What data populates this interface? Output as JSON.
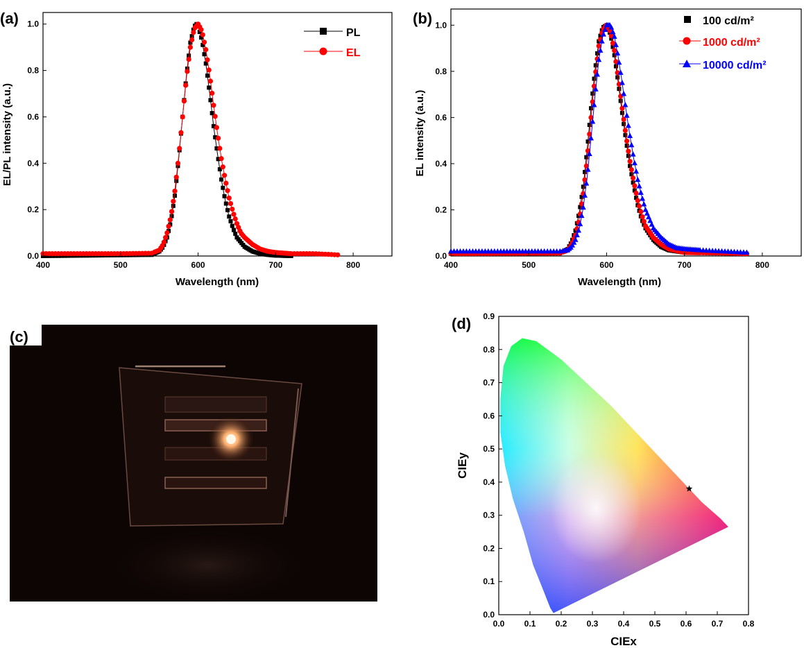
{
  "chart_data": [
    {
      "panel": "(a)",
      "type": "scatter",
      "xlabel": "Wavelength (nm)",
      "ylabel": "EL/PL intensity (a.u.)",
      "xlim": [
        400,
        850
      ],
      "ylim": [
        0,
        1.05
      ],
      "xticks": [
        "400",
        "500",
        "600",
        "700",
        "800"
      ],
      "yticks": [
        "0.0",
        "0.2",
        "0.4",
        "0.6",
        "0.8",
        "1.0"
      ],
      "legend_position": "top-right",
      "series": [
        {
          "name": "PL",
          "color": "#000000",
          "marker": "square",
          "x": [
            400,
            540,
            550,
            555,
            560,
            565,
            570,
            575,
            580,
            585,
            590,
            595,
            598,
            600,
            605,
            610,
            615,
            620,
            625,
            630,
            635,
            640,
            645,
            650,
            660,
            670,
            680,
            690,
            700,
            720
          ],
          "y": [
            0.0,
            0.005,
            0.02,
            0.04,
            0.08,
            0.15,
            0.26,
            0.42,
            0.6,
            0.78,
            0.92,
            0.99,
            1.0,
            0.99,
            0.93,
            0.83,
            0.7,
            0.56,
            0.44,
            0.33,
            0.24,
            0.17,
            0.12,
            0.08,
            0.04,
            0.02,
            0.01,
            0.005,
            0.002,
            0.0
          ]
        },
        {
          "name": "EL",
          "color": "#ff0000",
          "marker": "circle",
          "x": [
            400,
            500,
            540,
            550,
            555,
            560,
            565,
            570,
            575,
            580,
            585,
            590,
            595,
            600,
            605,
            610,
            615,
            620,
            625,
            630,
            635,
            640,
            645,
            650,
            655,
            660,
            670,
            680,
            690,
            700,
            720,
            750,
            780
          ],
          "y": [
            0.01,
            0.01,
            0.012,
            0.025,
            0.05,
            0.1,
            0.17,
            0.28,
            0.43,
            0.6,
            0.77,
            0.9,
            0.98,
            1.0,
            0.97,
            0.89,
            0.78,
            0.65,
            0.53,
            0.42,
            0.33,
            0.25,
            0.19,
            0.14,
            0.1,
            0.08,
            0.05,
            0.03,
            0.02,
            0.015,
            0.01,
            0.01,
            0.005
          ]
        }
      ]
    },
    {
      "panel": "(b)",
      "type": "scatter",
      "xlabel": "Wavelength (nm)",
      "ylabel": "EL intensity (a.u.)",
      "xlim": [
        400,
        850
      ],
      "ylim": [
        0,
        1.07
      ],
      "xticks": [
        "400",
        "500",
        "600",
        "700",
        "800"
      ],
      "yticks": [
        "0.0",
        "0.2",
        "0.4",
        "0.6",
        "0.8",
        "1.0"
      ],
      "legend_position": "top-right",
      "series": [
        {
          "name": "100 cd/m²",
          "color": "#000000",
          "marker": "square",
          "x": [
            400,
            540,
            550,
            555,
            560,
            565,
            570,
            575,
            580,
            585,
            590,
            595,
            600,
            605,
            610,
            615,
            620,
            625,
            630,
            635,
            640,
            645,
            650,
            660,
            670,
            680,
            700,
            750,
            780
          ],
          "y": [
            0.01,
            0.012,
            0.03,
            0.06,
            0.11,
            0.19,
            0.3,
            0.46,
            0.64,
            0.8,
            0.93,
            0.99,
            1.0,
            0.96,
            0.87,
            0.75,
            0.62,
            0.5,
            0.39,
            0.3,
            0.22,
            0.16,
            0.12,
            0.07,
            0.04,
            0.025,
            0.015,
            0.012,
            0.01
          ]
        },
        {
          "name": "1000 cd/m²",
          "color": "#ff0000",
          "marker": "circle",
          "x": [
            400,
            540,
            550,
            555,
            560,
            565,
            570,
            575,
            580,
            585,
            590,
            595,
            600,
            605,
            610,
            615,
            620,
            625,
            630,
            635,
            640,
            645,
            650,
            660,
            670,
            680,
            700,
            750,
            780
          ],
          "y": [
            0.01,
            0.012,
            0.025,
            0.05,
            0.09,
            0.16,
            0.27,
            0.42,
            0.6,
            0.77,
            0.91,
            0.98,
            1.0,
            0.97,
            0.89,
            0.77,
            0.64,
            0.52,
            0.41,
            0.32,
            0.24,
            0.18,
            0.13,
            0.08,
            0.05,
            0.03,
            0.015,
            0.012,
            0.01
          ]
        },
        {
          "name": "10000 cd/m²",
          "color": "#0000ff",
          "marker": "triangle",
          "x": [
            400,
            540,
            550,
            555,
            560,
            565,
            570,
            575,
            580,
            585,
            590,
            595,
            600,
            605,
            610,
            615,
            620,
            625,
            630,
            635,
            640,
            645,
            650,
            660,
            670,
            680,
            690,
            700,
            720,
            750,
            780
          ],
          "y": [
            0.02,
            0.02,
            0.025,
            0.04,
            0.07,
            0.12,
            0.21,
            0.34,
            0.51,
            0.69,
            0.85,
            0.95,
            1.0,
            1.0,
            0.95,
            0.86,
            0.75,
            0.63,
            0.52,
            0.42,
            0.33,
            0.26,
            0.2,
            0.12,
            0.08,
            0.05,
            0.035,
            0.03,
            0.025,
            0.02,
            0.015
          ]
        }
      ]
    },
    {
      "panel": "(d)",
      "type": "scatter",
      "xlabel": "CIEx",
      "ylabel": "CIEy",
      "xlim": [
        0.0,
        0.8
      ],
      "ylim": [
        0.0,
        0.9
      ],
      "xticks": [
        "0.0",
        "0.1",
        "0.2",
        "0.3",
        "0.4",
        "0.5",
        "0.6",
        "0.7",
        "0.8"
      ],
      "yticks": [
        "0.0",
        "0.1",
        "0.2",
        "0.3",
        "0.4",
        "0.5",
        "0.6",
        "0.7",
        "0.8",
        "0.9"
      ],
      "point": {
        "x": 0.61,
        "y": 0.38,
        "marker": "star",
        "color": "#000000"
      },
      "gamut_locus": [
        [
          0.175,
          0.005
        ],
        [
          0.165,
          0.02
        ],
        [
          0.14,
          0.08
        ],
        [
          0.11,
          0.15
        ],
        [
          0.08,
          0.25
        ],
        [
          0.045,
          0.35
        ],
        [
          0.02,
          0.45
        ],
        [
          0.005,
          0.55
        ],
        [
          0.005,
          0.65
        ],
        [
          0.015,
          0.75
        ],
        [
          0.04,
          0.81
        ],
        [
          0.075,
          0.834
        ],
        [
          0.12,
          0.825
        ],
        [
          0.2,
          0.77
        ],
        [
          0.28,
          0.7
        ],
        [
          0.36,
          0.63
        ],
        [
          0.44,
          0.55
        ],
        [
          0.51,
          0.48
        ],
        [
          0.58,
          0.41
        ],
        [
          0.65,
          0.34
        ],
        [
          0.71,
          0.29
        ],
        [
          0.735,
          0.265
        ]
      ]
    }
  ],
  "photo": {
    "panel_label": "(c)",
    "description_colors": {
      "background": "#0d0504",
      "glow": "#ffb070",
      "edge": "#6a4a40"
    }
  }
}
